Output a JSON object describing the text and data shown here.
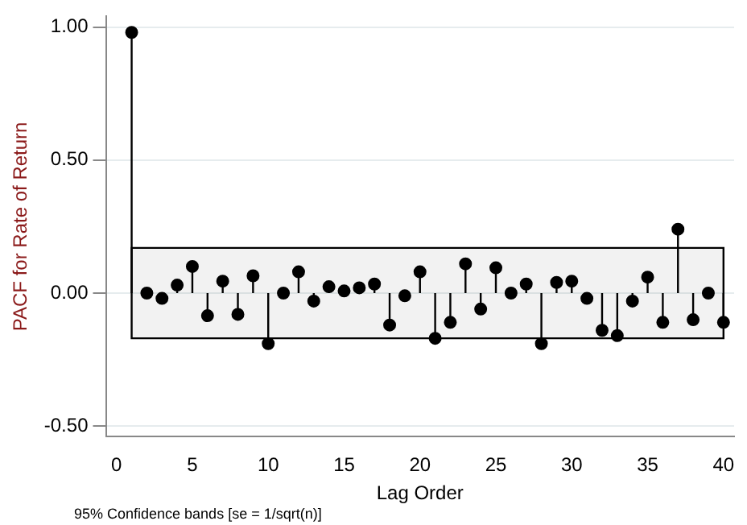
{
  "chart_data": {
    "type": "lollipop",
    "xlabel": "Lag Order",
    "ylabel": "PACF for Rate of Return",
    "x": [
      1,
      2,
      3,
      4,
      5,
      6,
      7,
      8,
      9,
      10,
      11,
      12,
      13,
      14,
      15,
      16,
      17,
      18,
      19,
      20,
      21,
      22,
      23,
      24,
      25,
      26,
      27,
      28,
      29,
      30,
      31,
      32,
      33,
      34,
      35,
      36,
      37,
      38,
      39,
      40
    ],
    "values": [
      0.98,
      0.0,
      -0.02,
      0.03,
      0.1,
      -0.085,
      0.045,
      -0.08,
      0.065,
      -0.19,
      0.0,
      0.08,
      -0.03,
      0.024,
      0.008,
      0.02,
      0.034,
      -0.12,
      -0.01,
      0.08,
      -0.17,
      -0.11,
      0.11,
      -0.06,
      0.095,
      0.0,
      0.034,
      -0.19,
      0.04,
      0.045,
      -0.02,
      -0.14,
      -0.16,
      -0.03,
      0.06,
      -0.11,
      0.24,
      -0.1,
      0.0,
      -0.11
    ],
    "color": "#000000",
    "marker": "circle",
    "xlim": [
      -0.7,
      40.7
    ],
    "xticks": [
      0,
      5,
      10,
      15,
      20,
      25,
      30,
      35,
      40
    ],
    "ylim": [
      -0.54,
      1.04
    ],
    "yticks": [
      {
        "value": -0.5,
        "label": "-0.50"
      },
      {
        "value": 0,
        "label": "0.00"
      },
      {
        "value": 0.5,
        "label": "0.50"
      },
      {
        "value": 1,
        "label": "1.00"
      }
    ],
    "grid": "y",
    "legend": false,
    "bands": [
      {
        "axis": "y",
        "from": -0.17,
        "to": 0.17,
        "color": "#000000"
      }
    ],
    "annotations": [
      "95% Confidence bands [se = 1/sqrt(n)]"
    ]
  }
}
